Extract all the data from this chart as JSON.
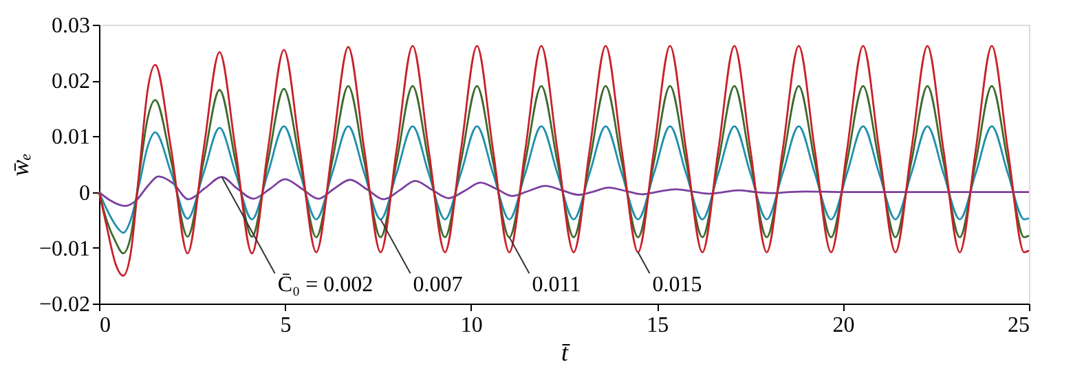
{
  "chart_data": {
    "type": "line",
    "xlabel": "t̄",
    "ylabel": "w̄ₑ",
    "xlim": [
      0,
      25
    ],
    "ylim": [
      -0.02,
      0.03
    ],
    "xticks": [
      0,
      5,
      10,
      15,
      20,
      25
    ],
    "yticks": [
      {
        "value": -0.02,
        "label": "−0.02"
      },
      {
        "value": -0.01,
        "label": "−0.01"
      },
      0,
      0.01,
      0.02,
      0.03
    ],
    "grid": false,
    "line_style": "solid",
    "marker": "none",
    "series": [
      {
        "color": "#7b3fa0",
        "x": [
          0,
          0.3,
          0.7,
          1.0,
          1.3,
          1.6,
          2.0,
          2.4,
          2.85,
          3.3,
          3.7,
          4.15,
          4.6,
          5.0,
          5.45,
          5.9,
          6.3,
          6.75,
          7.2,
          7.65,
          8.1,
          8.5,
          8.95,
          9.4,
          9.85,
          10.25,
          10.7,
          11.1,
          11.55,
          12.0,
          12.45,
          12.9,
          13.3,
          13.7,
          14.15,
          14.6,
          15.05,
          15.5,
          15.95,
          16.4,
          16.8,
          17.2,
          17.65,
          18.1,
          18.55,
          19.0,
          20.0,
          25
        ],
        "values": [
          0,
          -0.0015,
          -0.0025,
          -0.0015,
          0.001,
          0.0028,
          0.0015,
          -0.0013,
          0.0007,
          0.0027,
          0.0007,
          -0.0012,
          0.0006,
          0.0023,
          0.0006,
          -0.0012,
          0.0005,
          0.0022,
          0.0005,
          -0.0013,
          0.0004,
          0.002,
          0.0004,
          -0.0011,
          0.0003,
          0.0017,
          0.0005,
          -0.0007,
          0.0002,
          0.0011,
          0.0003,
          -0.0005,
          0.0001,
          0.0008,
          0.0002,
          -0.0004,
          0.0001,
          0.0005,
          0.0001,
          -0.0003,
          0,
          0.0003,
          0,
          -0.0002,
          0,
          0.0001,
          0,
          0
        ]
      },
      {
        "color": "#1f8fb0",
        "x": [
          0,
          0.2,
          0.45,
          0.65,
          0.85,
          1.1,
          1.3,
          1.51,
          1.94,
          2.38,
          2.81,
          3.24,
          3.67,
          4.11,
          4.54,
          4.97,
          5.4,
          5.84,
          6.27,
          6.7,
          7.13,
          7.57,
          8.0,
          8.43,
          8.86,
          9.3,
          9.73,
          10.16,
          10.59,
          11.03,
          11.46,
          11.89,
          12.32,
          12.76,
          13.19,
          13.62,
          14.05,
          14.49,
          14.92,
          15.35,
          15.78,
          16.22,
          16.65,
          17.08,
          17.51,
          17.95,
          18.38,
          18.81,
          19.24,
          19.68,
          20.11,
          20.54,
          20.97,
          21.41,
          21.84,
          22.27,
          22.7,
          23.14,
          23.57,
          24.0,
          24.43,
          24.87,
          25
        ],
        "values": [
          0,
          -0.003,
          -0.006,
          -0.0073,
          -0.005,
          0.002,
          0.008,
          0.0107,
          0.0034,
          -0.0048,
          0.0034,
          0.0115,
          0.0034,
          -0.0049,
          0.0034,
          0.0118,
          0.0034,
          -0.0049,
          0.0034,
          0.0118,
          0.0034,
          -0.0049,
          0.0034,
          0.0118,
          0.0034,
          -0.0049,
          0.0034,
          0.0118,
          0.0034,
          -0.0049,
          0.0034,
          0.0118,
          0.0034,
          -0.0049,
          0.0034,
          0.0118,
          0.0034,
          -0.0049,
          0.0034,
          0.0118,
          0.0034,
          -0.0049,
          0.0034,
          0.0118,
          0.0034,
          -0.0049,
          0.0034,
          0.0118,
          0.0034,
          -0.0049,
          0.0034,
          0.0118,
          0.0034,
          -0.0049,
          0.0034,
          0.0118,
          0.0034,
          -0.0049,
          0.0034,
          0.0118,
          0.0034,
          -0.0049,
          -0.0047
        ]
      },
      {
        "color": "#3a6b2a",
        "x": [
          0,
          0.2,
          0.45,
          0.65,
          0.85,
          1.1,
          1.3,
          1.51,
          1.94,
          2.38,
          2.81,
          3.24,
          3.67,
          4.11,
          4.54,
          4.97,
          5.4,
          5.84,
          6.27,
          6.7,
          7.13,
          7.57,
          8.0,
          8.43,
          8.86,
          9.3,
          9.73,
          10.16,
          10.59,
          11.03,
          11.46,
          11.89,
          12.32,
          12.76,
          13.19,
          13.62,
          14.05,
          14.49,
          14.92,
          15.35,
          15.78,
          16.22,
          16.65,
          17.08,
          17.51,
          17.95,
          18.38,
          18.81,
          19.24,
          19.68,
          20.11,
          20.54,
          20.97,
          21.41,
          21.84,
          22.27,
          22.7,
          23.14,
          23.57,
          24.0,
          24.43,
          24.87,
          25
        ],
        "values": [
          0,
          -0.005,
          -0.009,
          -0.011,
          -0.008,
          0.004,
          0.013,
          0.0165,
          0.0055,
          -0.008,
          0.0055,
          0.0183,
          0.0055,
          -0.008,
          0.0055,
          0.0185,
          0.0055,
          -0.0081,
          0.0055,
          0.019,
          0.0055,
          -0.0081,
          0.0055,
          0.019,
          0.0055,
          -0.0081,
          0.0055,
          0.019,
          0.0055,
          -0.0081,
          0.0055,
          0.019,
          0.0055,
          -0.0081,
          0.0055,
          0.019,
          0.0055,
          -0.0081,
          0.0055,
          0.019,
          0.0055,
          -0.0081,
          0.0055,
          0.019,
          0.0055,
          -0.0081,
          0.0055,
          0.019,
          0.0055,
          -0.0081,
          0.0055,
          0.019,
          0.0055,
          -0.0081,
          0.0055,
          0.019,
          0.0055,
          -0.0081,
          0.0055,
          0.019,
          0.0055,
          -0.0081,
          -0.0078
        ]
      },
      {
        "color": "#c8202a",
        "x": [
          0,
          0.2,
          0.45,
          0.65,
          0.85,
          1.1,
          1.3,
          1.51,
          1.94,
          2.38,
          2.81,
          3.24,
          3.67,
          4.11,
          4.54,
          4.97,
          5.4,
          5.84,
          6.27,
          6.7,
          7.13,
          7.57,
          8.0,
          8.43,
          8.86,
          9.3,
          9.73,
          10.16,
          10.59,
          11.03,
          11.46,
          11.89,
          12.32,
          12.76,
          13.19,
          13.62,
          14.05,
          14.49,
          14.92,
          15.35,
          15.78,
          16.22,
          16.65,
          17.08,
          17.51,
          17.95,
          18.38,
          18.81,
          19.24,
          19.68,
          20.11,
          20.54,
          20.97,
          21.41,
          21.84,
          22.27,
          22.7,
          23.14,
          23.57,
          24.0,
          24.43,
          24.87,
          25
        ],
        "values": [
          0,
          -0.006,
          -0.013,
          -0.015,
          -0.011,
          0.005,
          0.018,
          0.0228,
          0.0076,
          -0.011,
          0.0076,
          0.0251,
          0.0076,
          -0.011,
          0.0076,
          0.0255,
          0.0076,
          -0.0108,
          0.0076,
          0.026,
          0.0076,
          -0.0108,
          0.0076,
          0.0262,
          0.0076,
          -0.0108,
          0.0076,
          0.0262,
          0.0076,
          -0.0108,
          0.0076,
          0.0262,
          0.0076,
          -0.0108,
          0.0076,
          0.0262,
          0.0076,
          -0.0108,
          0.0076,
          0.0262,
          0.0076,
          -0.0108,
          0.0076,
          0.0262,
          0.0076,
          -0.0108,
          0.0076,
          0.0262,
          0.0076,
          -0.0108,
          0.0076,
          0.0262,
          0.0076,
          -0.0108,
          0.0076,
          0.0262,
          0.0076,
          -0.0108,
          0.0076,
          0.0262,
          0.0076,
          -0.0108,
          -0.0105
        ]
      }
    ],
    "annotations": [
      {
        "text": "C̄₀ = 0.002",
        "x": 3.3,
        "y": 0.0027
      },
      {
        "text": "0.007",
        "x": 7.57,
        "y": -0.0049
      },
      {
        "text": "0.011",
        "x": 11.03,
        "y": -0.0081
      },
      {
        "text": "0.015",
        "x": 14.49,
        "y": -0.0108
      }
    ]
  }
}
